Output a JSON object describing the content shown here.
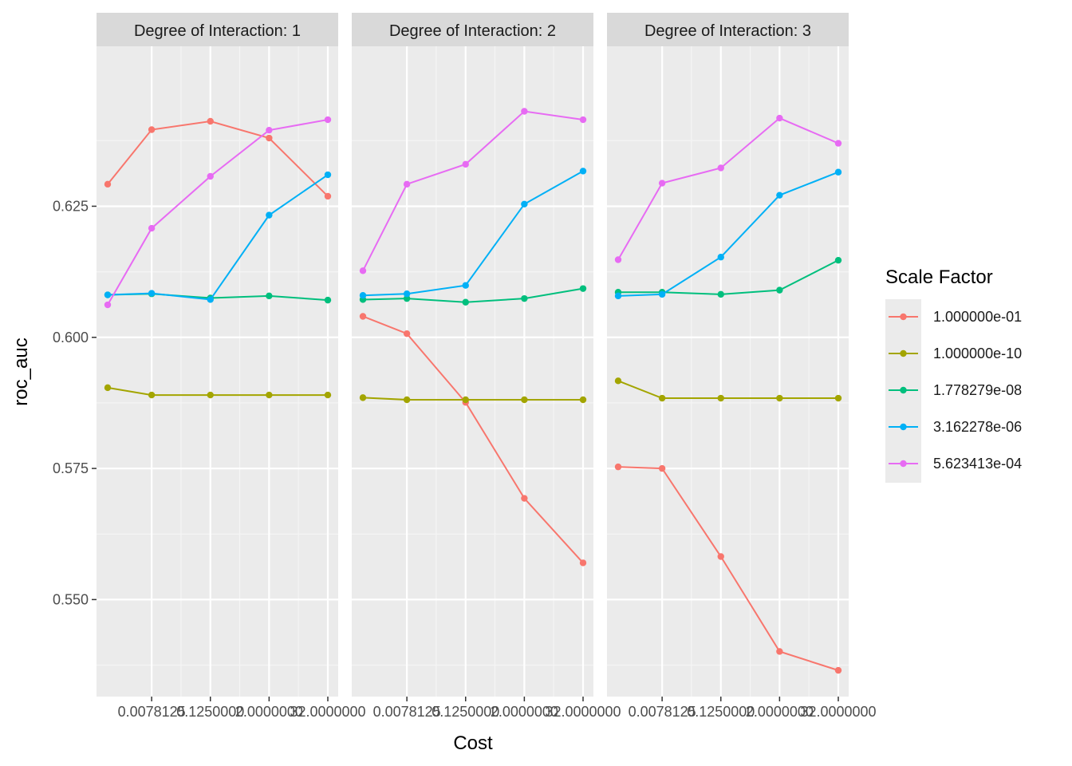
{
  "chart_data": {
    "type": "line",
    "xlabel": "Cost",
    "ylabel": "roc_auc",
    "ylim": [
      0.5315,
      0.6555
    ],
    "y_ticks": [
      0.55,
      0.575,
      0.6,
      0.625
    ],
    "y_tick_labels": [
      "0.550",
      "0.575",
      "0.600",
      "0.625"
    ],
    "x_categories": [
      "0.0078125",
      "0.1250000",
      "2.0000000",
      "32.0000000"
    ],
    "legend": {
      "title": "Scale Factor",
      "position": "right"
    },
    "series_colors": {
      "1.000000e-01": "#F8766D",
      "1.000000e-10": "#A3A500",
      "1.778279e-08": "#00BF7D",
      "3.162278e-06": "#00B0F6",
      "5.623413e-04": "#E76BF3"
    },
    "panels": [
      {
        "title": "Degree of Interaction: 1",
        "series": [
          {
            "name": "1.000000e-01",
            "points": [
              [
                0.00098,
                0.6292
              ],
              [
                0.0078125,
                0.6396
              ],
              [
                0.125,
                0.6412
              ],
              [
                2.0,
                0.638
              ],
              [
                32.0,
                0.6269
              ]
            ]
          },
          {
            "name": "1.000000e-10",
            "points": [
              [
                0.00098,
                0.5904
              ],
              [
                0.0078125,
                0.589
              ],
              [
                0.125,
                0.589
              ],
              [
                2.0,
                0.589
              ],
              [
                32.0,
                0.589
              ]
            ]
          },
          {
            "name": "1.778279e-08",
            "points": [
              [
                0.00098,
                0.6081
              ],
              [
                0.0078125,
                0.6083
              ],
              [
                0.125,
                0.6075
              ],
              [
                2.0,
                0.6079
              ],
              [
                32.0,
                0.6071
              ]
            ]
          },
          {
            "name": "3.162278e-06",
            "points": [
              [
                0.00098,
                0.6081
              ],
              [
                0.0078125,
                0.6084
              ],
              [
                0.125,
                0.6072
              ],
              [
                2.0,
                0.6233
              ],
              [
                32.0,
                0.631
              ]
            ]
          },
          {
            "name": "5.623413e-04",
            "points": [
              [
                0.00098,
                0.6062
              ],
              [
                0.0078125,
                0.6208
              ],
              [
                0.125,
                0.6307
              ],
              [
                2.0,
                0.6395
              ],
              [
                32.0,
                0.6415
              ]
            ]
          }
        ]
      },
      {
        "title": "Degree of Interaction: 2",
        "series": [
          {
            "name": "1.000000e-01",
            "points": [
              [
                0.00098,
                0.604
              ],
              [
                0.0078125,
                0.6007
              ],
              [
                0.125,
                0.5876
              ],
              [
                2.0,
                0.5693
              ],
              [
                32.0,
                0.557
              ]
            ]
          },
          {
            "name": "1.000000e-10",
            "points": [
              [
                0.00098,
                0.5885
              ],
              [
                0.0078125,
                0.5881
              ],
              [
                0.125,
                0.5881
              ],
              [
                2.0,
                0.5881
              ],
              [
                32.0,
                0.5881
              ]
            ]
          },
          {
            "name": "1.778279e-08",
            "points": [
              [
                0.00098,
                0.6072
              ],
              [
                0.0078125,
                0.6074
              ],
              [
                0.125,
                0.6067
              ],
              [
                2.0,
                0.6074
              ],
              [
                32.0,
                0.6093
              ]
            ]
          },
          {
            "name": "3.162278e-06",
            "points": [
              [
                0.00098,
                0.608
              ],
              [
                0.0078125,
                0.6083
              ],
              [
                0.125,
                0.6099
              ],
              [
                2.0,
                0.6254
              ],
              [
                32.0,
                0.6317
              ]
            ]
          },
          {
            "name": "5.623413e-04",
            "points": [
              [
                0.00098,
                0.6127
              ],
              [
                0.0078125,
                0.6292
              ],
              [
                0.125,
                0.633
              ],
              [
                2.0,
                0.6431
              ],
              [
                32.0,
                0.6415
              ]
            ]
          }
        ]
      },
      {
        "title": "Degree of Interaction: 3",
        "series": [
          {
            "name": "1.000000e-01",
            "points": [
              [
                0.00098,
                0.5753
              ],
              [
                0.0078125,
                0.575
              ],
              [
                0.125,
                0.5582
              ],
              [
                2.0,
                0.5401
              ],
              [
                32.0,
                0.5365
              ]
            ]
          },
          {
            "name": "1.000000e-10",
            "points": [
              [
                0.00098,
                0.5917
              ],
              [
                0.0078125,
                0.5884
              ],
              [
                0.125,
                0.5884
              ],
              [
                2.0,
                0.5884
              ],
              [
                32.0,
                0.5884
              ]
            ]
          },
          {
            "name": "1.778279e-08",
            "points": [
              [
                0.00098,
                0.6086
              ],
              [
                0.0078125,
                0.6086
              ],
              [
                0.125,
                0.6082
              ],
              [
                2.0,
                0.609
              ],
              [
                32.0,
                0.6147
              ]
            ]
          },
          {
            "name": "3.162278e-06",
            "points": [
              [
                0.00098,
                0.6079
              ],
              [
                0.0078125,
                0.6082
              ],
              [
                0.125,
                0.6153
              ],
              [
                2.0,
                0.6271
              ],
              [
                32.0,
                0.6315
              ]
            ]
          },
          {
            "name": "5.623413e-04",
            "points": [
              [
                0.00098,
                0.6148
              ],
              [
                0.0078125,
                0.6294
              ],
              [
                0.125,
                0.6323
              ],
              [
                2.0,
                0.6418
              ],
              [
                32.0,
                0.637
              ]
            ]
          }
        ]
      }
    ]
  }
}
